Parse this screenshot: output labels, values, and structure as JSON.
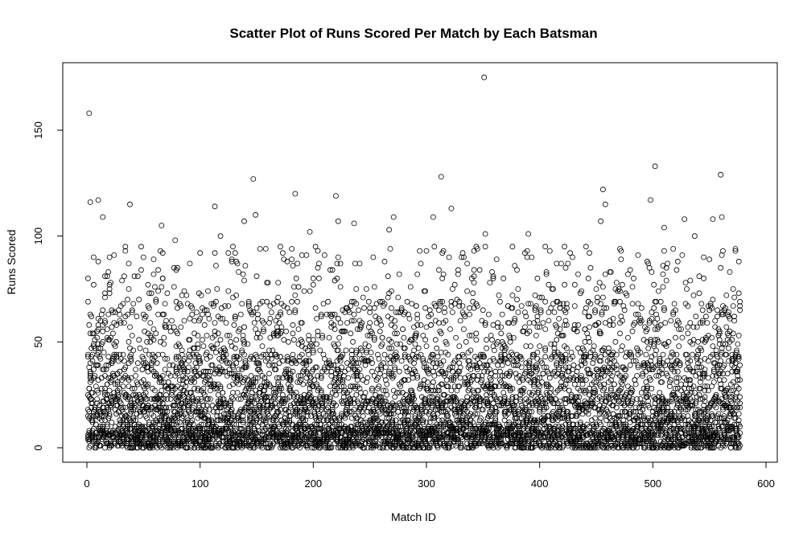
{
  "chart_data": {
    "type": "scatter",
    "title": "Scatter Plot of Runs Scored Per Match by Each Batsman",
    "xlabel": "Match ID",
    "ylabel": "Runs Scored",
    "xlim": [
      0,
      600
    ],
    "ylim": [
      -6,
      180
    ],
    "x_ticks": [
      0,
      100,
      200,
      300,
      400,
      500,
      600
    ],
    "y_ticks": [
      0,
      50,
      100,
      150
    ],
    "grid": false,
    "legend": "none",
    "marker": "open-circle",
    "n_matches": 577,
    "highlighted_points": [
      {
        "x": 2,
        "y": 158
      },
      {
        "x": 3,
        "y": 116
      },
      {
        "x": 10,
        "y": 117
      },
      {
        "x": 14,
        "y": 109
      },
      {
        "x": 38,
        "y": 115
      },
      {
        "x": 66,
        "y": 105
      },
      {
        "x": 78,
        "y": 98
      },
      {
        "x": 113,
        "y": 114
      },
      {
        "x": 118,
        "y": 100
      },
      {
        "x": 139,
        "y": 107
      },
      {
        "x": 147,
        "y": 127
      },
      {
        "x": 149,
        "y": 110
      },
      {
        "x": 184,
        "y": 120
      },
      {
        "x": 197,
        "y": 102
      },
      {
        "x": 220,
        "y": 119
      },
      {
        "x": 222,
        "y": 107
      },
      {
        "x": 236,
        "y": 106
      },
      {
        "x": 267,
        "y": 103
      },
      {
        "x": 271,
        "y": 109
      },
      {
        "x": 306,
        "y": 109
      },
      {
        "x": 313,
        "y": 128
      },
      {
        "x": 322,
        "y": 113
      },
      {
        "x": 351,
        "y": 175
      },
      {
        "x": 352,
        "y": 101
      },
      {
        "x": 390,
        "y": 101
      },
      {
        "x": 454,
        "y": 107
      },
      {
        "x": 456,
        "y": 122
      },
      {
        "x": 458,
        "y": 115
      },
      {
        "x": 498,
        "y": 117
      },
      {
        "x": 502,
        "y": 133
      },
      {
        "x": 510,
        "y": 104
      },
      {
        "x": 528,
        "y": 108
      },
      {
        "x": 537,
        "y": 100
      },
      {
        "x": 553,
        "y": 108
      },
      {
        "x": 560,
        "y": 129
      },
      {
        "x": 561,
        "y": 109
      }
    ]
  }
}
